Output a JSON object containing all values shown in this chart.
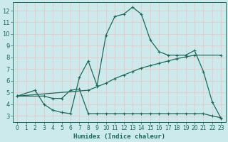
{
  "xlabel": "Humidex (Indice chaleur)",
  "ylabel": "",
  "bg_color": "#cce9ec",
  "line_color": "#1a6b5a",
  "grid_color": "#e8c8c8",
  "xlim": [
    -0.5,
    23.5
  ],
  "ylim": [
    2.5,
    12.7
  ],
  "xticks": [
    0,
    1,
    2,
    3,
    4,
    5,
    6,
    7,
    8,
    9,
    10,
    11,
    12,
    13,
    14,
    15,
    16,
    17,
    18,
    19,
    20,
    21,
    22,
    23
  ],
  "yticks": [
    3,
    4,
    5,
    6,
    7,
    8,
    9,
    10,
    11,
    12
  ],
  "curve1_x": [
    0,
    2,
    3,
    4,
    5,
    6,
    7,
    8,
    9,
    10,
    11,
    12,
    13,
    14,
    15,
    16,
    17,
    18,
    19,
    20,
    21,
    22,
    23
  ],
  "curve1_y": [
    4.7,
    5.2,
    4.0,
    3.5,
    3.3,
    3.2,
    6.3,
    7.7,
    5.6,
    9.9,
    11.5,
    11.7,
    12.3,
    11.7,
    9.5,
    8.5,
    8.2,
    8.2,
    8.2,
    8.6,
    6.8,
    4.2,
    2.8
  ],
  "curve2_x": [
    0,
    3,
    4,
    5,
    6,
    7,
    8,
    9,
    10,
    11,
    12,
    13,
    14,
    15,
    16,
    17,
    18,
    19,
    20,
    21,
    22,
    23
  ],
  "curve2_y": [
    4.7,
    4.7,
    4.5,
    4.5,
    5.2,
    5.3,
    3.2,
    3.2,
    3.2,
    3.2,
    3.2,
    3.2,
    3.2,
    3.2,
    3.2,
    3.2,
    3.2,
    3.2,
    3.2,
    3.2,
    3.0,
    2.85
  ],
  "curve3_x": [
    0,
    8,
    9,
    10,
    11,
    12,
    13,
    14,
    15,
    16,
    17,
    18,
    19,
    20,
    23
  ],
  "curve3_y": [
    4.7,
    5.2,
    5.5,
    5.8,
    6.2,
    6.5,
    6.8,
    7.1,
    7.3,
    7.5,
    7.7,
    7.9,
    8.05,
    8.2,
    8.2
  ]
}
